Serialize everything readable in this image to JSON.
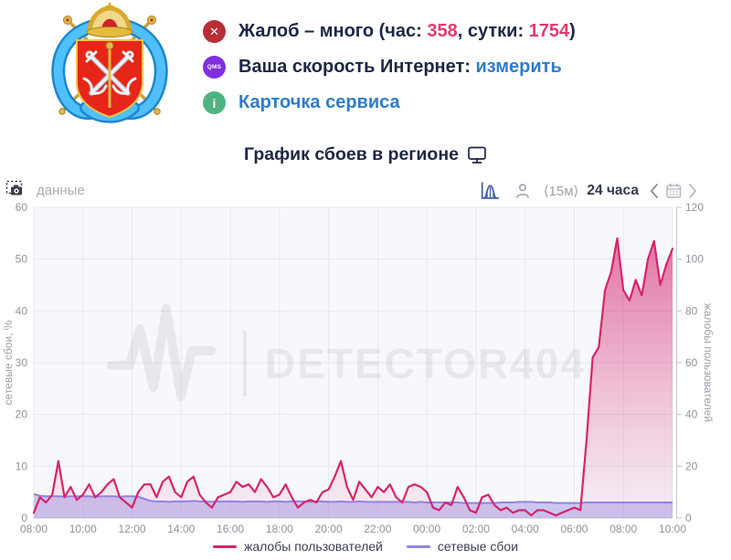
{
  "header": {
    "status_lines": [
      {
        "icon": {
          "glyph": "✕",
          "bg": "#b92d35"
        },
        "parts": [
          {
            "t": "Жалоб – много (час: ",
            "c": "dark"
          },
          {
            "t": "358",
            "c": "accent"
          },
          {
            "t": ", сутки: ",
            "c": "dark"
          },
          {
            "t": "1754",
            "c": "accent"
          },
          {
            "t": ")",
            "c": "dark"
          }
        ]
      },
      {
        "icon": {
          "glyph": "QMS",
          "bg": "#7f2fe0"
        },
        "parts": [
          {
            "t": "Ваша скорость Интернет: ",
            "c": "dark"
          },
          {
            "t": "измерить",
            "c": "link"
          }
        ]
      },
      {
        "icon": {
          "glyph": "i",
          "bg": "#4db380"
        },
        "parts": [
          {
            "t": "Карточка сервиса",
            "c": "link"
          }
        ]
      }
    ]
  },
  "title_row": {
    "text": "График сбоев в регионе"
  },
  "toolbar": {
    "left_label": "данные",
    "interval": "⟨15м⟩",
    "range": "24 часа"
  },
  "colors": {
    "accent_pink": "#e13b6e",
    "link_blue": "#2e7cc9",
    "dark_navy": "#1d2646",
    "complaints_line": "#d6246e",
    "failures_line": "#9183e0",
    "toolbar_icon_blue": "#40609f"
  },
  "chart_data": {
    "type": "line",
    "title": "График сбоев в регионе",
    "watermark": "DETECTOR404",
    "interval_minutes": 15,
    "grid": true,
    "legend_position": "bottom",
    "x_tick_labels": [
      "08:00",
      "10:00",
      "12:00",
      "14:00",
      "16:00",
      "18:00",
      "20:00",
      "22:00",
      "00:00",
      "02:00",
      "04:00",
      "06:00",
      "08:00",
      "10:00"
    ],
    "left_axis": {
      "label": "сетевые сбои, %",
      "min": 0,
      "max": 60,
      "ticks": [
        0,
        10,
        20,
        30,
        40,
        50,
        60
      ]
    },
    "right_axis": {
      "label": "жалобы пользователей",
      "min": 0,
      "max": 120,
      "ticks": [
        0,
        20,
        40,
        60,
        80,
        100,
        120
      ]
    },
    "series": [
      {
        "name": "жалобы пользователей",
        "axis": "right",
        "color": "#d6246e",
        "fill": "gradient",
        "values": [
          2,
          8,
          6,
          9,
          22,
          8,
          12,
          7,
          9,
          13,
          8,
          10,
          13,
          15,
          8,
          6,
          4,
          10,
          13,
          13,
          8,
          14,
          16,
          10,
          8,
          14,
          16,
          9,
          6,
          4,
          8,
          9,
          10,
          14,
          12,
          13,
          10,
          15,
          12,
          8,
          9,
          13,
          8,
          4,
          6,
          7,
          6,
          10,
          11,
          16,
          22,
          12,
          7,
          14,
          11,
          8,
          12,
          10,
          13,
          8,
          6,
          12,
          13,
          12,
          10,
          4,
          3,
          6,
          5,
          12,
          8,
          3,
          2,
          8,
          9,
          5,
          3,
          4,
          2,
          3,
          3,
          1,
          3,
          3,
          2,
          1,
          2,
          3,
          4,
          3,
          30,
          62,
          66,
          88,
          95,
          108,
          88,
          84,
          92,
          86,
          100,
          107,
          90,
          98,
          104
        ]
      },
      {
        "name": "сетевые сбои",
        "axis": "left",
        "color": "#9183e0",
        "fill": "solid",
        "values": [
          4.6,
          4.3,
          4.2,
          4.2,
          4.2,
          4.1,
          4.2,
          4.2,
          4.2,
          4.2,
          4.1,
          4.2,
          4.2,
          4.2,
          4.1,
          4.2,
          4.2,
          4.1,
          3.7,
          3.3,
          3.2,
          3.2,
          3.1,
          3.2,
          3.2,
          3.2,
          3.3,
          3.2,
          3.2,
          3.1,
          3.2,
          3.2,
          3.2,
          3.2,
          3.1,
          3.2,
          3.2,
          3.2,
          3.1,
          3.2,
          3.2,
          3.1,
          3.2,
          3.2,
          3.2,
          3.1,
          3.2,
          3.2,
          3.1,
          3.1,
          3.2,
          3.1,
          3.1,
          3.2,
          3.1,
          3.1,
          3.1,
          3.1,
          3.1,
          3.1,
          3.1,
          3.1,
          3.0,
          3.1,
          3.0,
          3.0,
          3.0,
          3.0,
          3.0,
          3.0,
          2.9,
          2.9,
          2.9,
          2.9,
          2.9,
          2.9,
          3.0,
          3.0,
          3.0,
          3.1,
          3.1,
          3.1,
          3.0,
          3.0,
          3.0,
          2.9,
          2.9,
          2.9,
          2.9,
          2.9,
          3.0,
          3.0,
          3.0,
          3.0,
          3.0,
          3.0,
          3.0,
          3.0,
          3.0,
          3.0,
          3.0,
          3.0,
          3.0,
          3.0,
          3.0
        ]
      }
    ]
  }
}
